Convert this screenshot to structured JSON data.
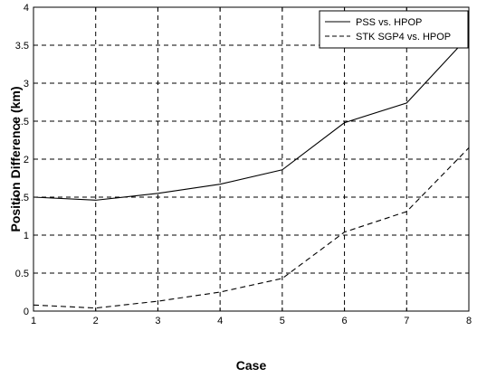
{
  "chart_data": {
    "type": "line",
    "title": "",
    "xlabel": "Case",
    "ylabel": "Position Difference (km)",
    "xlim": [
      1,
      8
    ],
    "ylim": [
      0,
      4
    ],
    "grid": true,
    "legend_position": "top-right",
    "x": [
      1,
      2,
      3,
      4,
      5,
      6,
      7,
      8
    ],
    "x_ticks": [
      "1",
      "2",
      "3",
      "4",
      "5",
      "6",
      "7",
      "8"
    ],
    "y_ticks": [
      "0",
      "0.5",
      "1",
      "1.5",
      "2",
      "2.5",
      "3",
      "3.5",
      "4"
    ],
    "series": [
      {
        "name": "PSS vs. HPOP",
        "line_style": "solid",
        "color": "#000000",
        "values": [
          1.5,
          1.46,
          1.55,
          1.67,
          1.86,
          2.48,
          2.74,
          3.62
        ]
      },
      {
        "name": "STK SGP4 vs. HPOP",
        "line_style": "dashed",
        "color": "#000000",
        "values": [
          0.08,
          0.04,
          0.13,
          0.25,
          0.43,
          1.04,
          1.31,
          2.15
        ]
      }
    ]
  }
}
